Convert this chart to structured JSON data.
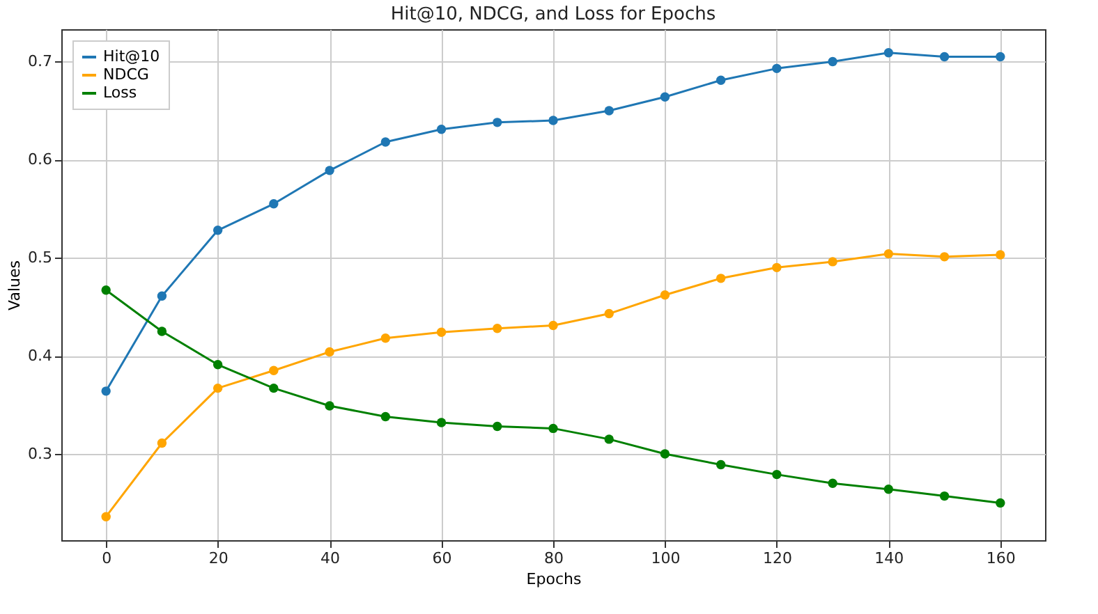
{
  "chart_data": {
    "type": "line",
    "title": "Hit@10, NDCG, and Loss for Epochs",
    "xlabel": "Epochs",
    "ylabel": "Values",
    "x": [
      0,
      10,
      20,
      30,
      40,
      50,
      60,
      70,
      80,
      90,
      100,
      110,
      120,
      130,
      140,
      150,
      160
    ],
    "series": [
      {
        "name": "Hit@10",
        "color": "#1f77b4",
        "values": [
          0.364,
          0.461,
          0.528,
          0.555,
          0.589,
          0.618,
          0.631,
          0.638,
          0.64,
          0.65,
          0.664,
          0.681,
          0.693,
          0.7,
          0.709,
          0.705,
          0.705
        ]
      },
      {
        "name": "NDCG",
        "color": "#ffa500",
        "values": [
          0.236,
          0.311,
          0.367,
          0.385,
          0.404,
          0.418,
          0.424,
          0.428,
          0.431,
          0.443,
          0.462,
          0.479,
          0.49,
          0.496,
          0.504,
          0.501,
          0.503
        ]
      },
      {
        "name": "Loss",
        "color": "#008000",
        "values": [
          0.467,
          0.425,
          0.391,
          0.367,
          0.349,
          0.338,
          0.332,
          0.328,
          0.326,
          0.315,
          0.3,
          0.289,
          0.279,
          0.27,
          0.264,
          0.257,
          0.25
        ]
      }
    ],
    "xlim": [
      -8,
      168
    ],
    "xticks": [
      0,
      20,
      40,
      60,
      80,
      100,
      120,
      140,
      160
    ],
    "ylim": [
      0.212,
      0.733
    ],
    "yticks": [
      0.3,
      0.4,
      0.5,
      0.6,
      0.7
    ],
    "grid": true,
    "legend": "top left",
    "marker": "circle",
    "line_style": "solid"
  }
}
